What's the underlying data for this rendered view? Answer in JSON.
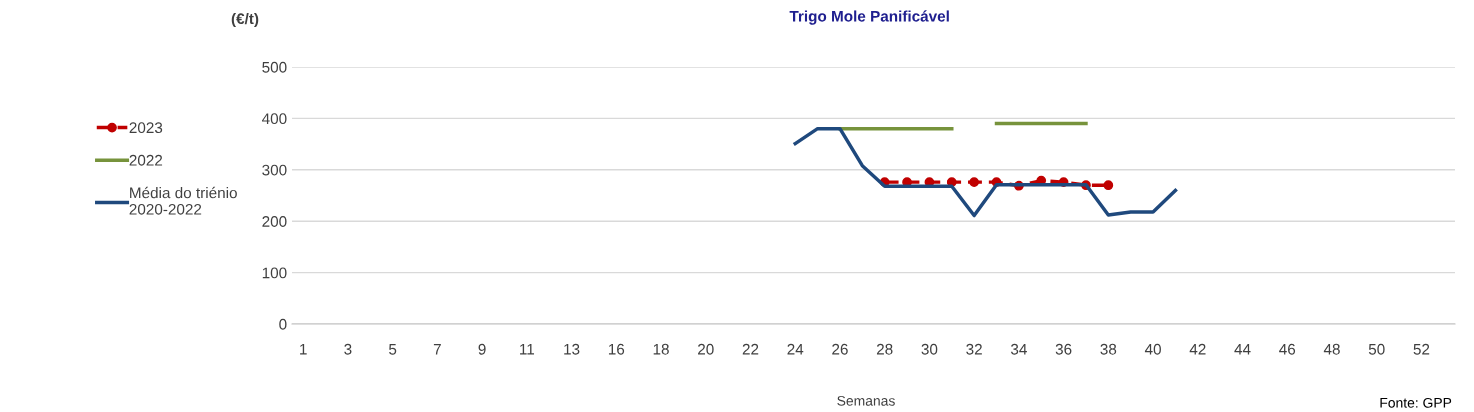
{
  "chart_data": {
    "type": "line",
    "title": "Trigo Mole Panificável",
    "ylabel": "(€/t)",
    "xlabel": "Semanas",
    "annotations": [
      "Fonte: GPP"
    ],
    "categories": [
      "1",
      null,
      "3",
      null,
      "5",
      null,
      "7",
      null,
      "9",
      null,
      "11",
      null,
      "13",
      null,
      "16",
      null,
      "18",
      null,
      "20",
      null,
      "22",
      null,
      "24",
      null,
      "26",
      null,
      "28",
      null,
      "30",
      null,
      "32",
      null,
      "34",
      null,
      "36",
      null,
      "38",
      null,
      "40",
      null,
      "42",
      null,
      "44",
      null,
      "46",
      null,
      "48",
      null,
      "50",
      null,
      "52",
      null
    ],
    "series": [
      {
        "name": "2023",
        "color": "#c00000",
        "marker": "circle",
        "line_style": "dashed",
        "values": [
          null,
          null,
          null,
          null,
          null,
          null,
          null,
          null,
          null,
          null,
          null,
          null,
          null,
          null,
          null,
          null,
          null,
          null,
          null,
          null,
          null,
          null,
          null,
          null,
          null,
          null,
          276,
          276,
          276,
          276,
          276,
          276,
          269,
          279,
          276,
          270,
          270,
          null,
          null,
          null,
          null,
          null,
          null,
          null,
          null,
          null,
          null,
          null,
          null,
          null,
          null,
          null
        ]
      },
      {
        "name": "2022",
        "color": "#77933c",
        "marker": "none",
        "line_style": "solid",
        "values": [
          null,
          null,
          null,
          null,
          null,
          null,
          null,
          null,
          null,
          null,
          null,
          null,
          null,
          null,
          null,
          null,
          null,
          null,
          null,
          null,
          null,
          null,
          null,
          null,
          380,
          380,
          380,
          380,
          380,
          380,
          null,
          390,
          390,
          390,
          390,
          390,
          null,
          null,
          null,
          null,
          null,
          null,
          null,
          null,
          null,
          null,
          null,
          null,
          null,
          null,
          null,
          null
        ]
      },
      {
        "name": "Média do triénio\n2020-2022",
        "color": "#1f497d",
        "marker": "none",
        "line_style": "solid",
        "values": [
          null,
          null,
          null,
          null,
          null,
          null,
          null,
          null,
          null,
          null,
          null,
          null,
          null,
          null,
          null,
          null,
          null,
          null,
          null,
          null,
          null,
          null,
          351,
          380,
          380,
          308,
          268,
          268,
          268,
          268,
          211,
          271,
          271,
          271,
          271,
          271,
          212,
          218,
          218,
          260,
          null,
          null,
          null,
          null,
          null,
          null,
          null,
          null,
          null,
          null,
          null,
          null
        ]
      }
    ],
    "ylim": [
      0,
      500
    ],
    "yticks": [
      0,
      100,
      200,
      300,
      400,
      500
    ],
    "grid": "y",
    "legend": "left"
  }
}
